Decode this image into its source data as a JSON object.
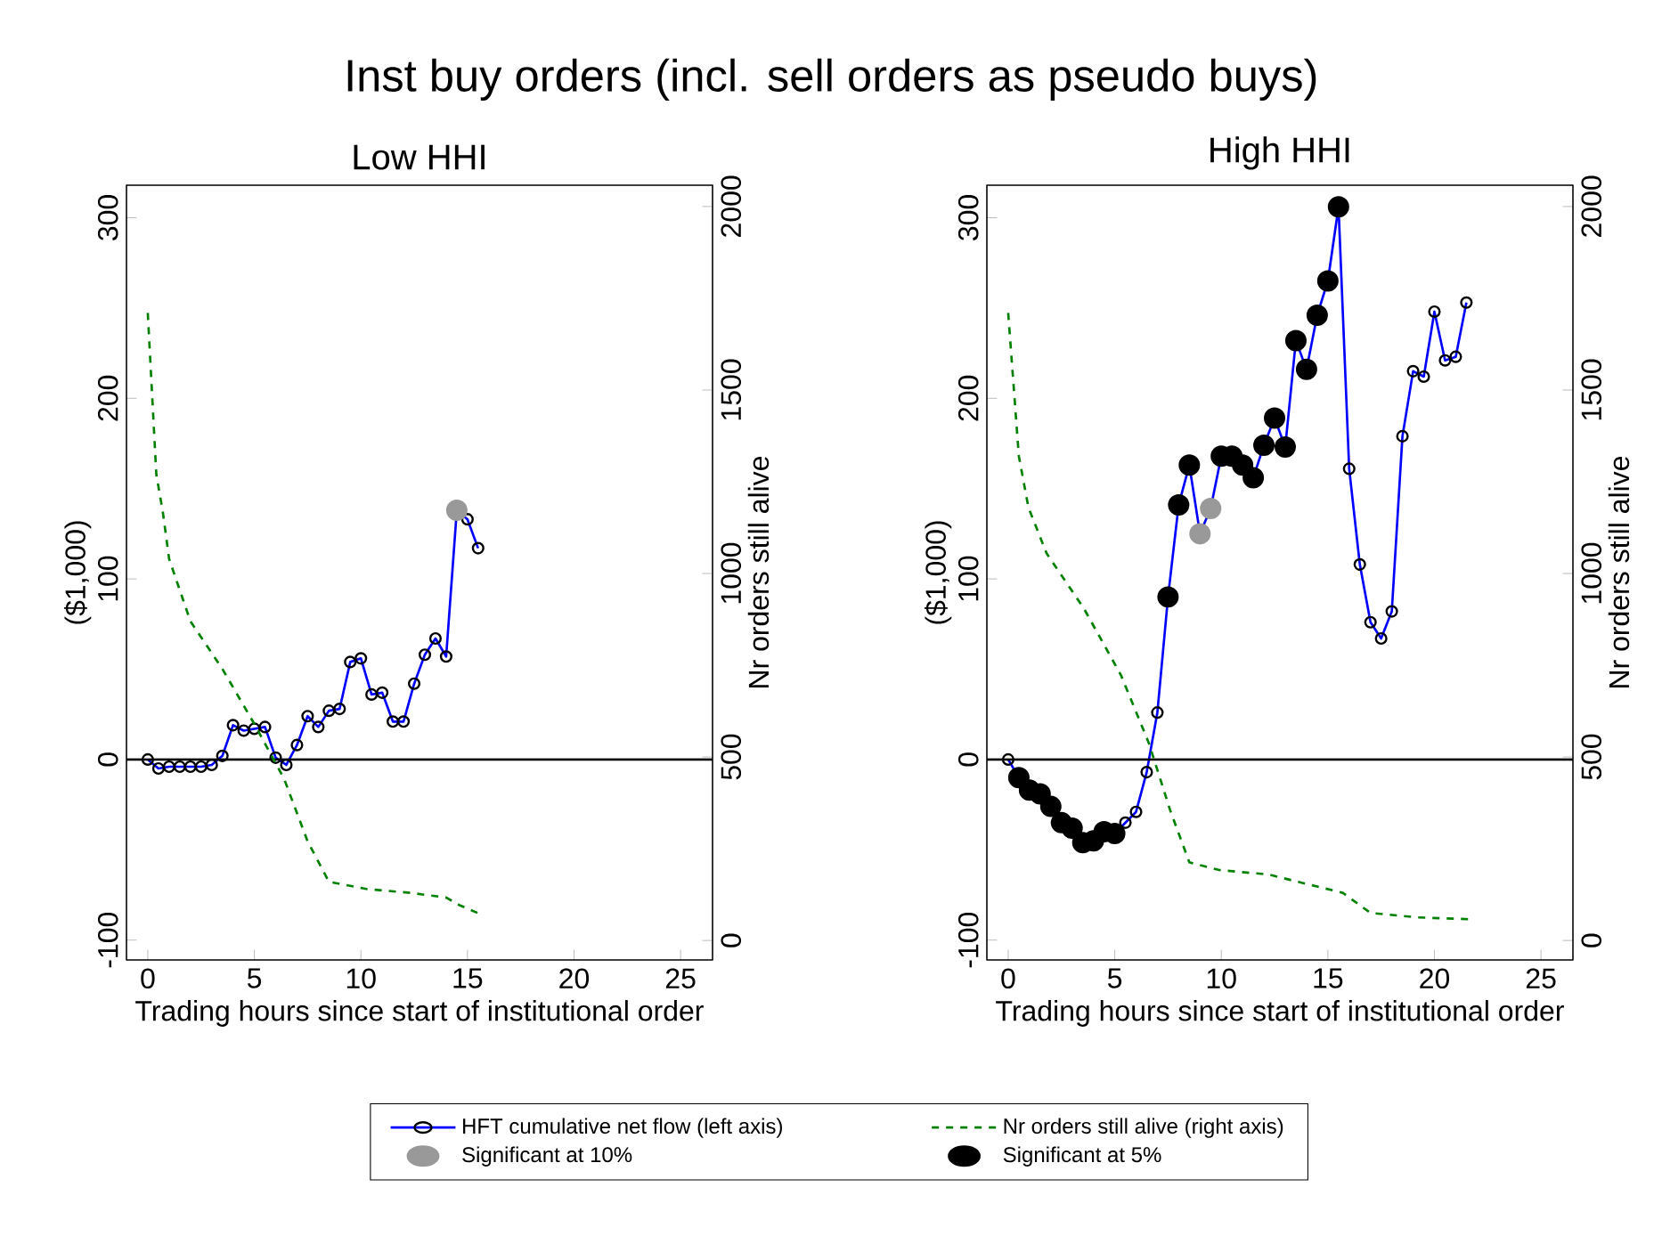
{
  "chart_data": [
    {
      "type": "line",
      "title": "Low HHI",
      "annotations": [
        "Inst buy orders (incl. sell orders as pseudo buys)"
      ],
      "xlabel": "Trading hours since start of institutional order",
      "ylabel": "($1,000)",
      "y2label": "Nr orders still alive",
      "xlim": [
        -1,
        26.5
      ],
      "ylim": [
        -111,
        318
      ],
      "y2lim": [
        -53,
        2058
      ],
      "xticks": [
        0,
        5,
        10,
        15,
        20,
        25
      ],
      "yticks": [
        -100,
        0,
        100,
        200,
        300
      ],
      "y2ticks": [
        0,
        500,
        1000,
        1500,
        2000
      ],
      "legend": "bottom",
      "ref_lines": [
        {
          "axis": "y",
          "value": 0,
          "color": "#000000"
        }
      ],
      "series": [
        {
          "name": "HFT cumulative net flow (left axis)",
          "color": "#0000ff",
          "marker": "circle",
          "line_style": "solid",
          "x": [
            0,
            0.5,
            1,
            1.5,
            2,
            2.5,
            3,
            3.5,
            4,
            4.5,
            5,
            5.5,
            6,
            6.5,
            7,
            7.5,
            8,
            8.5,
            9,
            9.5,
            10,
            10.5,
            11,
            11.5,
            12,
            12.5,
            13,
            13.5,
            14,
            14.5,
            15,
            15.5
          ],
          "values": [
            0,
            -5,
            -4,
            -4,
            -4,
            -4,
            -3,
            2,
            19,
            16,
            17,
            18,
            1,
            -3,
            8,
            24,
            18,
            27,
            28,
            54,
            56,
            36,
            37,
            21,
            21,
            42,
            58,
            67,
            57,
            138,
            133,
            117
          ]
        },
        {
          "name": "Nr orders still alive (right axis)",
          "axis": "y2",
          "color": "#008000",
          "marker": "none",
          "line_style": "dashed",
          "x": [
            0,
            0.4,
            0.7,
            1,
            2,
            3.5,
            5,
            6.4,
            7.5,
            8.5,
            10.3,
            12.3,
            14,
            14.6,
            15.6
          ],
          "values": [
            1710,
            1270,
            1170,
            1040,
            870,
            740,
            590,
            440,
            270,
            160,
            140,
            130,
            117,
            97,
            72
          ]
        },
        {
          "name": "Significant at 10%",
          "type": "scatter",
          "color": "#999999",
          "marker": "circle",
          "x": [
            14.5
          ],
          "values": [
            138
          ]
        },
        {
          "name": "Significant at 5%",
          "type": "scatter",
          "color": "#000000",
          "marker": "circle"
        }
      ]
    },
    {
      "type": "line",
      "title": "High HHI",
      "xlabel": "Trading hours since start of institutional order",
      "ylabel": "($1,000)",
      "y2label": "Nr orders still alive",
      "xlim": [
        -1,
        26.5
      ],
      "ylim": [
        -111,
        318
      ],
      "y2lim": [
        -53,
        2058
      ],
      "xticks": [
        0,
        5,
        10,
        15,
        20,
        25
      ],
      "yticks": [
        -100,
        0,
        100,
        200,
        300
      ],
      "y2ticks": [
        0,
        500,
        1000,
        1500,
        2000
      ],
      "ref_lines": [
        {
          "axis": "y",
          "value": 0,
          "color": "#000000"
        }
      ],
      "series": [
        {
          "color": "#0000ff",
          "marker": "circle",
          "line_style": "solid",
          "x": [
            0,
            0.5,
            1,
            1.5,
            2,
            2.5,
            3,
            3.5,
            4,
            4.5,
            5,
            5.5,
            6,
            6.5,
            7,
            7.5,
            8,
            8.5,
            9,
            9.5,
            10,
            10.5,
            11,
            11.5,
            12,
            12.5,
            13,
            13.5,
            14,
            14.5,
            15,
            15.5,
            16,
            16.5,
            17,
            17.5,
            18,
            18.5,
            19,
            19.5,
            20,
            20.5,
            21,
            21.5
          ],
          "values": [
            0,
            -10,
            -17,
            -19,
            -26,
            -35,
            -38,
            -46,
            -45,
            -40,
            -41,
            -35,
            -29,
            -7,
            26,
            90,
            141,
            163,
            125,
            139,
            168,
            168,
            163,
            156,
            174,
            189,
            173,
            232,
            216,
            246,
            265,
            306,
            161,
            108,
            76,
            67,
            82,
            179,
            215,
            212,
            248,
            221,
            223,
            253
          ]
        },
        {
          "axis": "y2",
          "color": "#008000",
          "marker": "none",
          "line_style": "dashed",
          "x": [
            0,
            0.5,
            0.95,
            1.8,
            3.55,
            5.3,
            6.6,
            7.6,
            8.5,
            9.9,
            12.2,
            14.5,
            15.7,
            17,
            19.2,
            21.6
          ],
          "values": [
            1710,
            1320,
            1180,
            1055,
            905,
            722,
            538,
            355,
            213,
            192,
            180,
            147,
            130,
            75,
            63,
            58
          ]
        },
        {
          "type": "scatter",
          "color": "#999999",
          "marker": "circle",
          "x": [
            9,
            9.5
          ],
          "values": [
            125,
            139
          ]
        },
        {
          "type": "scatter",
          "color": "#000000",
          "marker": "circle",
          "x": [
            0.5,
            1,
            1.5,
            2,
            2.5,
            3,
            3.5,
            4,
            4.5,
            5,
            7.5,
            8,
            8.5,
            10,
            10.5,
            11,
            11.5,
            12,
            12.5,
            13,
            13.5,
            14,
            14.5,
            15,
            15.5
          ],
          "values": [
            -10,
            -17,
            -19,
            -26,
            -35,
            -38,
            -46,
            -45,
            -40,
            -41,
            90,
            141,
            163,
            168,
            168,
            163,
            156,
            174,
            189,
            173,
            232,
            216,
            246,
            265,
            306
          ]
        }
      ]
    }
  ]
}
